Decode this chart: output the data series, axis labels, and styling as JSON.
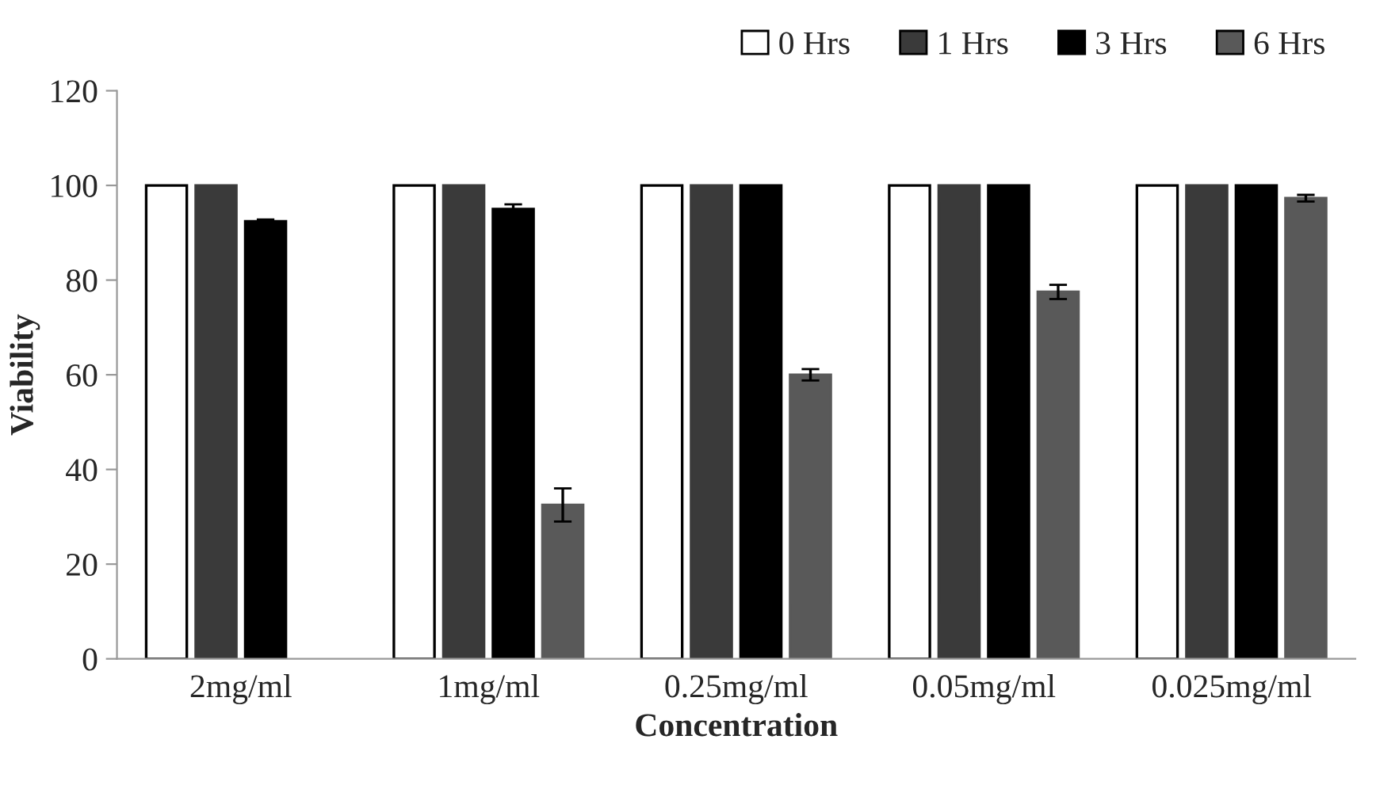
{
  "chart_data": {
    "type": "bar",
    "xlabel": "Concentration",
    "ylabel": "Viability",
    "categories": [
      "2mg/ml",
      "1mg/ml",
      "0.25mg/ml",
      "0.05mg/ml",
      "0.025mg/ml"
    ],
    "series": [
      {
        "name": "0 Hrs",
        "color": "#ffffff",
        "values": [
          100,
          100,
          100,
          100,
          100
        ]
      },
      {
        "name": "1 Hrs",
        "color": "#3a3a3a",
        "values": [
          100,
          100,
          100,
          100,
          100
        ]
      },
      {
        "name": "3 Hrs",
        "color": "#000000",
        "values": [
          92.4,
          95,
          100,
          100,
          100
        ],
        "errors": [
          0.4,
          1,
          null,
          null,
          null
        ]
      },
      {
        "name": "6 Hrs",
        "color": "#595959",
        "values": [
          null,
          32.5,
          60,
          77.5,
          97.3
        ],
        "errors": [
          null,
          3.5,
          1.2,
          1.5,
          0.7
        ]
      }
    ],
    "ylim": [
      0,
      120
    ],
    "yticks": [
      0,
      20,
      40,
      60,
      80,
      100,
      120
    ],
    "grid": false,
    "legend": "top right"
  }
}
